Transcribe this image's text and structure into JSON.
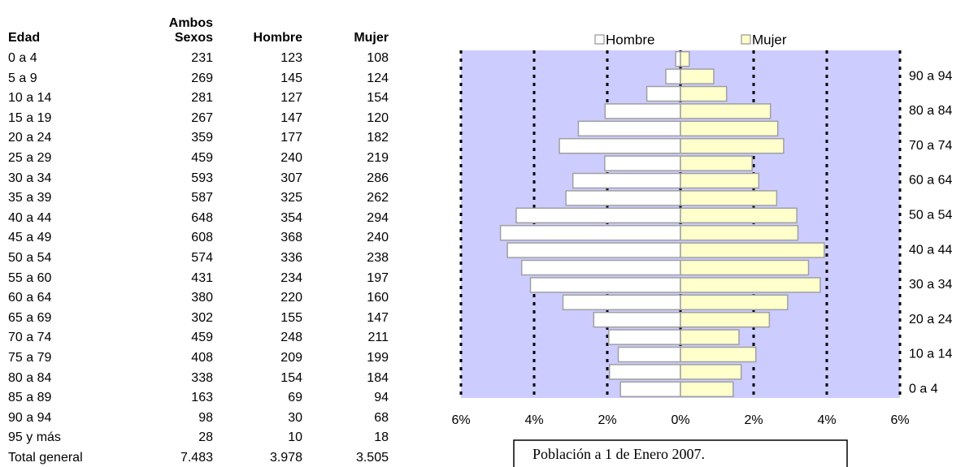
{
  "table": {
    "headers": [
      "Edad",
      "Ambos Sexos",
      "Hombre",
      "Mujer"
    ],
    "rows": [
      [
        "0 a 4",
        "231",
        "123",
        "108"
      ],
      [
        "5 a 9",
        "269",
        "145",
        "124"
      ],
      [
        "10 a 14",
        "281",
        "127",
        "154"
      ],
      [
        "15 a 19",
        "267",
        "147",
        "120"
      ],
      [
        "20 a 24",
        "359",
        "177",
        "182"
      ],
      [
        "25 a 29",
        "459",
        "240",
        "219"
      ],
      [
        "30 a 34",
        "593",
        "307",
        "286"
      ],
      [
        "35 a 39",
        "587",
        "325",
        "262"
      ],
      [
        "40 a 44",
        "648",
        "354",
        "294"
      ],
      [
        "45 a 49",
        "608",
        "368",
        "240"
      ],
      [
        "50 a 54",
        "574",
        "336",
        "238"
      ],
      [
        "55 a 60",
        "431",
        "234",
        "197"
      ],
      [
        "60 a 64",
        "380",
        "220",
        "160"
      ],
      [
        "65 a 69",
        "302",
        "155",
        "147"
      ],
      [
        "70 a 74",
        "459",
        "248",
        "211"
      ],
      [
        "75 a 79",
        "408",
        "209",
        "199"
      ],
      [
        "80 a 84",
        "338",
        "154",
        "184"
      ],
      [
        "85 a 89",
        "163",
        "69",
        "94"
      ],
      [
        "90 a 94",
        "98",
        "30",
        "68"
      ],
      [
        "95 y más",
        "28",
        "10",
        "18"
      ],
      [
        "Total general",
        "7.483",
        "3.978",
        "3.505"
      ]
    ]
  },
  "chart_data": {
    "type": "pyramid",
    "annotation": "Población a 1 de Enero 2007.",
    "categories": [
      "0 a 4",
      null,
      "10 a 14",
      null,
      "20 a 24",
      null,
      "30 a 34",
      null,
      "40 a 44",
      null,
      "50 a 54",
      null,
      "60 a 64",
      null,
      "70 a 74",
      null,
      "80 a 84",
      null,
      "90 a 94",
      null
    ],
    "series": [
      {
        "name": "Hombre",
        "color": "#ffffff",
        "values": [
          -1.64,
          -1.94,
          -1.7,
          -1.96,
          -2.37,
          -3.21,
          -4.1,
          -4.34,
          -4.73,
          -4.92,
          -4.49,
          -3.13,
          -2.94,
          -2.07,
          -3.31,
          -2.79,
          -2.06,
          -0.92,
          -0.4,
          -0.13
        ]
      },
      {
        "name": "Mujer",
        "color": "#ffffcc",
        "values": [
          1.44,
          1.66,
          2.06,
          1.6,
          2.43,
          2.93,
          3.82,
          3.5,
          3.93,
          3.21,
          3.18,
          2.63,
          2.14,
          1.96,
          2.82,
          2.66,
          2.46,
          1.26,
          0.91,
          0.24
        ]
      }
    ],
    "xlim": [
      -6,
      6
    ],
    "xticks": [
      {
        "value": -6,
        "label": "6%"
      },
      {
        "value": -4,
        "label": "4%"
      },
      {
        "value": -2,
        "label": "2%"
      },
      {
        "value": 0,
        "label": "0%"
      },
      {
        "value": 2,
        "label": "2%"
      },
      {
        "value": 4,
        "label": "4%"
      },
      {
        "value": 6,
        "label": "6%"
      }
    ],
    "grid": true,
    "legend": "top",
    "background": "#ccccff"
  }
}
